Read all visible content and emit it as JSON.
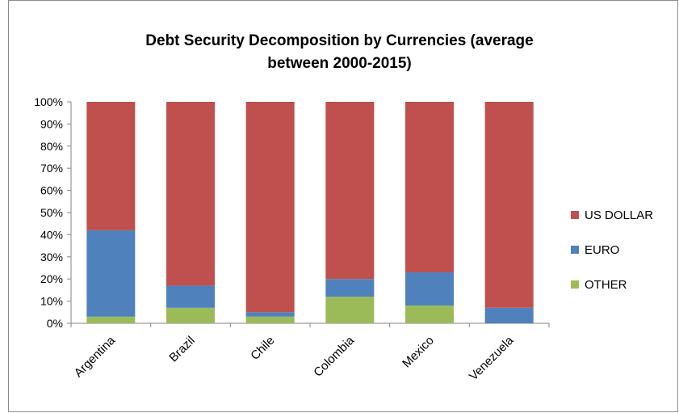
{
  "chart_data": {
    "type": "bar",
    "stacked": true,
    "title": "Debt Security Decomposition by Currencies (average between 2000-2015)",
    "title_lines": [
      "Debt Security Decomposition by Currencies (average",
      "between 2000-2015)"
    ],
    "categories": [
      "Argentina",
      "Brazil",
      "Chile",
      "Colombia",
      "Mexico",
      "Venezuela"
    ],
    "series": [
      {
        "name": "OTHER",
        "color": "#9bbb59",
        "values": [
          3,
          7,
          3,
          12,
          8,
          0
        ]
      },
      {
        "name": "EURO",
        "color": "#4f81bd",
        "values": [
          39,
          10,
          2,
          8,
          15,
          7
        ]
      },
      {
        "name": "US DOLLAR",
        "color": "#c0504d",
        "values": [
          58,
          83,
          95,
          80,
          77,
          93
        ]
      }
    ],
    "legend_order": [
      "US DOLLAR",
      "EURO",
      "OTHER"
    ],
    "ylim": [
      0,
      100
    ],
    "yticks": [
      "0%",
      "10%",
      "20%",
      "30%",
      "40%",
      "50%",
      "60%",
      "70%",
      "80%",
      "90%",
      "100%"
    ],
    "legend_position": "right",
    "grid": false
  }
}
